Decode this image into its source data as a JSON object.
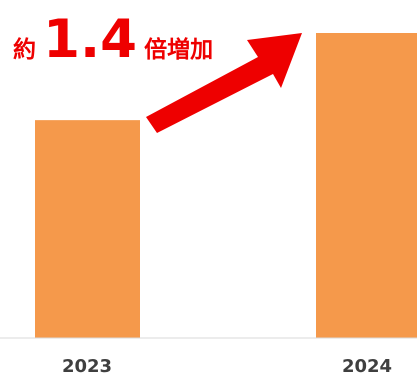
{
  "chart_data": {
    "type": "bar",
    "categories": [
      "2023",
      "2024"
    ],
    "values": [
      1.0,
      1.4
    ],
    "title": "",
    "xlabel": "",
    "ylabel": "",
    "annotation": {
      "prefix": "約",
      "multiplier": "1.4",
      "suffix": "倍増加"
    },
    "colors": {
      "bar": "#f5994b",
      "annotation": "#ee0000",
      "tick_label": "#3f3f3f",
      "axis": "#d9d9d9"
    }
  }
}
